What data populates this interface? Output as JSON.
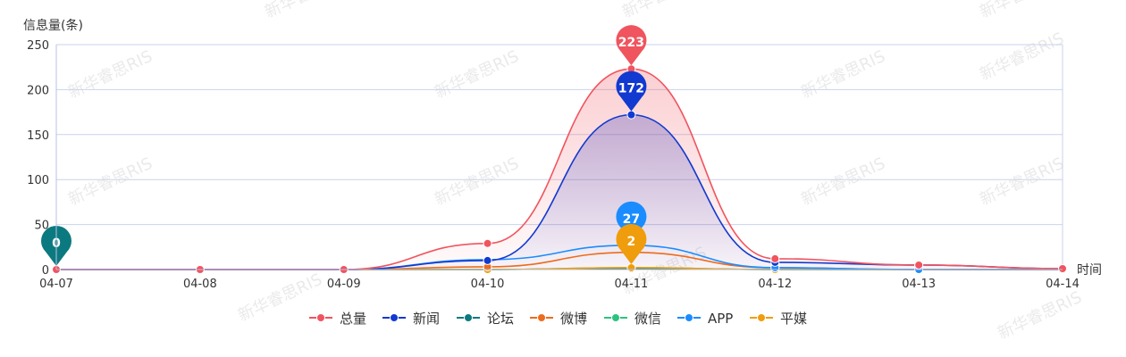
{
  "watermark_text": "新华睿思RIS",
  "chart_data": {
    "type": "line",
    "ylabel": "信息量(条)",
    "xlabel": "时间",
    "categories": [
      "04-07",
      "04-08",
      "04-09",
      "04-10",
      "04-11",
      "04-12",
      "04-13",
      "04-14"
    ],
    "ylim": [
      0,
      250
    ],
    "yticks": [
      0,
      50,
      100,
      150,
      200,
      250
    ],
    "grid": true,
    "legend_position": "bottom",
    "series": [
      {
        "name": "总量",
        "color": "#f0545e",
        "values": [
          0,
          0,
          0,
          29,
          223,
          12,
          5,
          1
        ],
        "area": true
      },
      {
        "name": "新闻",
        "color": "#1239d0",
        "values": [
          0,
          0,
          0,
          10,
          172,
          8,
          5,
          1
        ],
        "area": true
      },
      {
        "name": "论坛",
        "color": "#0b7a80",
        "values": [
          0,
          0,
          0,
          0,
          1,
          0,
          0,
          0
        ]
      },
      {
        "name": "微博",
        "color": "#ec6c1c",
        "values": [
          0,
          0,
          0,
          3,
          19,
          2,
          0,
          0
        ]
      },
      {
        "name": "微信",
        "color": "#2ec27e",
        "values": [
          0,
          0,
          0,
          0,
          2,
          0,
          0,
          0
        ]
      },
      {
        "name": "APP",
        "color": "#1a8cff",
        "values": [
          0,
          0,
          0,
          11,
          27,
          2,
          0,
          0
        ]
      },
      {
        "name": "平媒",
        "color": "#ef9d0c",
        "values": [
          0,
          0,
          0,
          0,
          2,
          0,
          0,
          0
        ]
      }
    ],
    "pins": [
      {
        "series": "总量",
        "x": "04-11",
        "value": "223"
      },
      {
        "series": "新闻",
        "x": "04-11",
        "value": "172"
      },
      {
        "series": "APP",
        "x": "04-11",
        "value": "27"
      },
      {
        "series": "平媒",
        "x": "04-11",
        "value": "2"
      },
      {
        "series": "论坛",
        "x": "04-07",
        "value": "0"
      }
    ]
  }
}
